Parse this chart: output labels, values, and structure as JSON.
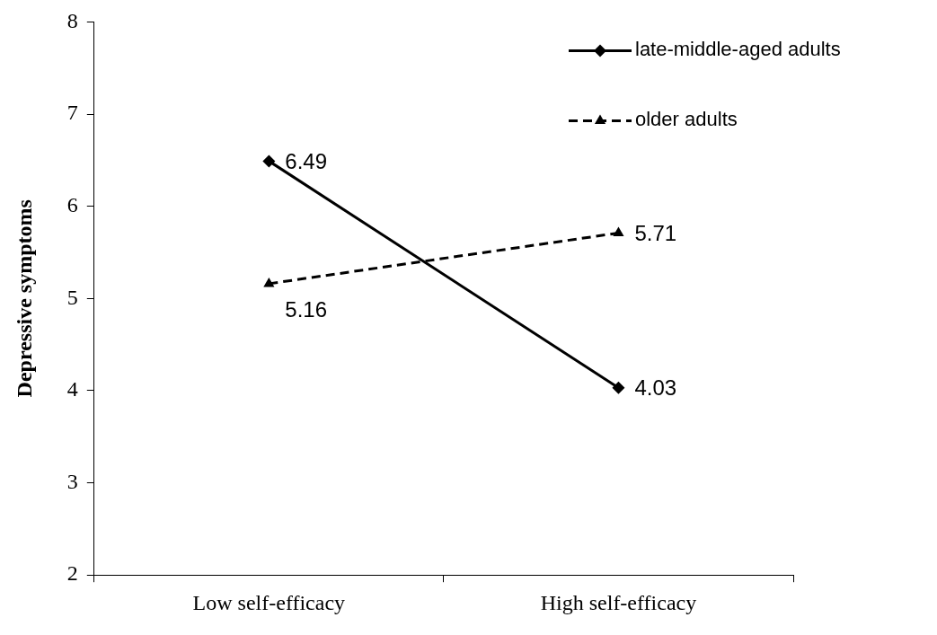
{
  "chart_data": {
    "type": "line",
    "ylabel": "Depressive symptoms",
    "categories": [
      "Low self-efficacy",
      "High self-efficacy"
    ],
    "series": [
      {
        "name": "late-middle-aged adults",
        "color": "#000000",
        "values": [
          6.49,
          4.03
        ],
        "marker": "diamond",
        "line_style": "solid"
      },
      {
        "name": "older adults",
        "color": "#000000",
        "values": [
          5.16,
          5.71
        ],
        "marker": "triangle",
        "line_style": "dashed"
      }
    ],
    "ylim": [
      2,
      8
    ],
    "yticks": [
      2,
      3,
      4,
      5,
      6,
      7,
      8
    ],
    "grid": false,
    "legend": "top right",
    "data_labels": true
  }
}
